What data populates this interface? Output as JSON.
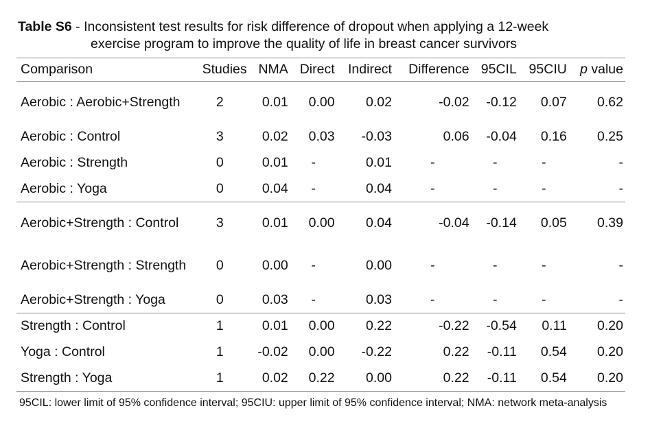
{
  "caption": {
    "lead": "Table S6",
    "text_line1": " - Inconsistent test results for risk difference of dropout when applying a 12-week",
    "text_line2": "exercise program to improve the quality of life in breast cancer survivors"
  },
  "table": {
    "headers": {
      "comparison": "Comparison",
      "studies": "Studies",
      "nma": "NMA",
      "direct": "Direct",
      "indirect": "Indirect",
      "difference": "Difference",
      "cil": "95CIL",
      "ciu": "95CIU",
      "p_italic": "p",
      "p_rest": " value"
    },
    "rows": [
      {
        "comparison": "Aerobic : Aerobic+Strength",
        "studies": "2",
        "nma": "0.01",
        "direct": "0.00",
        "indirect": "0.02",
        "difference": "-0.02",
        "cil": "-0.12",
        "ciu": "0.07",
        "p": "0.62"
      },
      {
        "comparison": "Aerobic : Control",
        "studies": "3",
        "nma": "0.02",
        "direct": "0.03",
        "indirect": "-0.03",
        "difference": "0.06",
        "cil": "-0.04",
        "ciu": "0.16",
        "p": "0.25"
      },
      {
        "comparison": "Aerobic : Strength",
        "studies": "0",
        "nma": "0.01",
        "direct": "-",
        "indirect": "0.01",
        "difference": "-",
        "cil": "-",
        "ciu": "-",
        "p": "-"
      },
      {
        "comparison": "Aerobic : Yoga",
        "studies": "0",
        "nma": "0.04",
        "direct": "-",
        "indirect": "0.04",
        "difference": "-",
        "cil": "-",
        "ciu": "-",
        "p": "-"
      },
      {
        "comparison": "Aerobic+Strength : Control",
        "studies": "3",
        "nma": "0.01",
        "direct": "0.00",
        "indirect": "0.04",
        "difference": "-0.04",
        "cil": "-0.14",
        "ciu": "0.05",
        "p": "0.39"
      },
      {
        "comparison": "Aerobic+Strength : Strength",
        "studies": "0",
        "nma": "0.00",
        "direct": "-",
        "indirect": "0.00",
        "difference": "-",
        "cil": "-",
        "ciu": "-",
        "p": "-"
      },
      {
        "comparison": "Aerobic+Strength : Yoga",
        "studies": "0",
        "nma": "0.03",
        "direct": "-",
        "indirect": "0.03",
        "difference": "-",
        "cil": "-",
        "ciu": "-",
        "p": "-"
      },
      {
        "comparison": "Strength : Control",
        "studies": "1",
        "nma": "0.01",
        "direct": "0.00",
        "indirect": "0.22",
        "difference": "-0.22",
        "cil": "-0.54",
        "ciu": "0.11",
        "p": "0.20"
      },
      {
        "comparison": "Yoga : Control",
        "studies": "1",
        "nma": "-0.02",
        "direct": "0.00",
        "indirect": "-0.22",
        "difference": "0.22",
        "cil": "-0.11",
        "ciu": "0.54",
        "p": "0.20"
      },
      {
        "comparison": "Strength : Yoga",
        "studies": "1",
        "nma": "0.02",
        "direct": "0.22",
        "indirect": "0.00",
        "difference": "0.22",
        "cil": "-0.11",
        "ciu": "0.54",
        "p": "0.20"
      }
    ]
  },
  "footnote": "95CIL: lower limit of 95% confidence interval; 95CIU: upper limit of 95% confidence interval; NMA: network meta-analysis"
}
